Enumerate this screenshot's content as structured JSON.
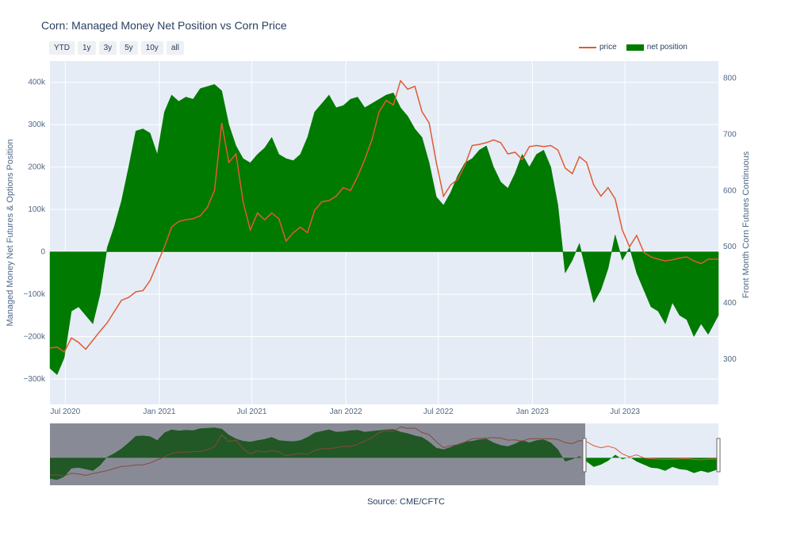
{
  "header": {
    "title": "Corn: Managed Money Net Position vs Corn Price",
    "range_buttons": [
      "YTD",
      "1y",
      "3y",
      "5y",
      "10y",
      "all"
    ]
  },
  "legend": {
    "price": "price",
    "net_position": "net position"
  },
  "source": "Source: CME/CFTC",
  "colors": {
    "price": "#e05a33",
    "net_position": "#007a00",
    "plot_bg": "#e5ecf6",
    "grid": "#ffffff"
  },
  "chart_data": {
    "type": "area",
    "title": "Corn: Managed Money Net Position vs Corn Price",
    "x_ticks": [
      "Jul 2020",
      "Jan 2021",
      "Jul 2021",
      "Jan 2022",
      "Jul 2022",
      "Jan 2023",
      "Jul 2023"
    ],
    "y_left": {
      "label": "Managed Money Net Futures & Options Position",
      "ticks": [
        "400k",
        "300k",
        "200k",
        "100k",
        "0",
        "−100k",
        "−200k",
        "−300k"
      ],
      "range": [
        -360000,
        450000
      ]
    },
    "y_right": {
      "label": "Front Month Corn Futures Continuous",
      "ticks": [
        "800",
        "700",
        "600",
        "500",
        "400",
        "300"
      ],
      "range": [
        220,
        830
      ]
    },
    "x_range": [
      "2020-06-01",
      "2023-12-31"
    ],
    "series": [
      {
        "name": "net position",
        "axis": "left",
        "points": [
          [
            "2020-06-01",
            -275000
          ],
          [
            "2020-06-15",
            -290000
          ],
          [
            "2020-06-29",
            -250000
          ],
          [
            "2020-07-13",
            -140000
          ],
          [
            "2020-07-27",
            -130000
          ],
          [
            "2020-08-10",
            -150000
          ],
          [
            "2020-08-24",
            -170000
          ],
          [
            "2020-09-07",
            -100000
          ],
          [
            "2020-09-21",
            10000
          ],
          [
            "2020-10-05",
            60000
          ],
          [
            "2020-10-19",
            120000
          ],
          [
            "2020-11-02",
            200000
          ],
          [
            "2020-11-16",
            285000
          ],
          [
            "2020-11-30",
            290000
          ],
          [
            "2020-12-14",
            280000
          ],
          [
            "2020-12-28",
            230000
          ],
          [
            "2021-01-11",
            330000
          ],
          [
            "2021-01-25",
            370000
          ],
          [
            "2021-02-08",
            355000
          ],
          [
            "2021-02-22",
            365000
          ],
          [
            "2021-03-08",
            360000
          ],
          [
            "2021-03-22",
            385000
          ],
          [
            "2021-04-05",
            390000
          ],
          [
            "2021-04-19",
            395000
          ],
          [
            "2021-05-03",
            380000
          ],
          [
            "2021-05-17",
            300000
          ],
          [
            "2021-05-31",
            250000
          ],
          [
            "2021-06-14",
            220000
          ],
          [
            "2021-06-28",
            210000
          ],
          [
            "2021-07-12",
            230000
          ],
          [
            "2021-07-26",
            245000
          ],
          [
            "2021-08-09",
            270000
          ],
          [
            "2021-08-23",
            230000
          ],
          [
            "2021-09-06",
            220000
          ],
          [
            "2021-09-20",
            215000
          ],
          [
            "2021-10-04",
            230000
          ],
          [
            "2021-10-18",
            270000
          ],
          [
            "2021-11-01",
            330000
          ],
          [
            "2021-11-15",
            350000
          ],
          [
            "2021-11-29",
            370000
          ],
          [
            "2021-12-13",
            340000
          ],
          [
            "2021-12-27",
            345000
          ],
          [
            "2022-01-10",
            360000
          ],
          [
            "2022-01-24",
            365000
          ],
          [
            "2022-02-07",
            340000
          ],
          [
            "2022-02-21",
            350000
          ],
          [
            "2022-03-07",
            360000
          ],
          [
            "2022-03-21",
            370000
          ],
          [
            "2022-04-04",
            375000
          ],
          [
            "2022-04-18",
            340000
          ],
          [
            "2022-05-02",
            320000
          ],
          [
            "2022-05-16",
            290000
          ],
          [
            "2022-05-30",
            270000
          ],
          [
            "2022-06-13",
            210000
          ],
          [
            "2022-06-27",
            130000
          ],
          [
            "2022-07-11",
            110000
          ],
          [
            "2022-07-25",
            140000
          ],
          [
            "2022-08-08",
            180000
          ],
          [
            "2022-08-22",
            210000
          ],
          [
            "2022-09-05",
            220000
          ],
          [
            "2022-09-19",
            240000
          ],
          [
            "2022-10-03",
            250000
          ],
          [
            "2022-10-17",
            200000
          ],
          [
            "2022-10-31",
            165000
          ],
          [
            "2022-11-14",
            150000
          ],
          [
            "2022-11-28",
            185000
          ],
          [
            "2022-12-12",
            230000
          ],
          [
            "2022-12-26",
            200000
          ],
          [
            "2023-01-09",
            230000
          ],
          [
            "2023-01-23",
            240000
          ],
          [
            "2023-02-06",
            200000
          ],
          [
            "2023-02-20",
            110000
          ],
          [
            "2023-03-06",
            -50000
          ],
          [
            "2023-03-20",
            -20000
          ],
          [
            "2023-04-03",
            20000
          ],
          [
            "2023-04-17",
            -50000
          ],
          [
            "2023-05-01",
            -120000
          ],
          [
            "2023-05-15",
            -90000
          ],
          [
            "2023-05-29",
            -40000
          ],
          [
            "2023-06-12",
            40000
          ],
          [
            "2023-06-26",
            -20000
          ],
          [
            "2023-07-10",
            10000
          ],
          [
            "2023-07-24",
            -50000
          ],
          [
            "2023-08-07",
            -90000
          ],
          [
            "2023-08-21",
            -130000
          ],
          [
            "2023-09-04",
            -140000
          ],
          [
            "2023-09-18",
            -170000
          ],
          [
            "2023-10-02",
            -120000
          ],
          [
            "2023-10-16",
            -150000
          ],
          [
            "2023-10-30",
            -160000
          ],
          [
            "2023-11-13",
            -200000
          ],
          [
            "2023-11-27",
            -170000
          ],
          [
            "2023-12-11",
            -195000
          ],
          [
            "2023-12-31",
            -150000
          ]
        ]
      },
      {
        "name": "price",
        "axis": "right",
        "points": [
          [
            "2020-06-01",
            320
          ],
          [
            "2020-06-15",
            322
          ],
          [
            "2020-06-29",
            313
          ],
          [
            "2020-07-13",
            338
          ],
          [
            "2020-07-27",
            330
          ],
          [
            "2020-08-10",
            318
          ],
          [
            "2020-08-24",
            334
          ],
          [
            "2020-09-07",
            350
          ],
          [
            "2020-09-21",
            365
          ],
          [
            "2020-10-05",
            385
          ],
          [
            "2020-10-19",
            405
          ],
          [
            "2020-11-02",
            410
          ],
          [
            "2020-11-16",
            420
          ],
          [
            "2020-11-30",
            422
          ],
          [
            "2020-12-14",
            440
          ],
          [
            "2020-12-28",
            470
          ],
          [
            "2021-01-11",
            500
          ],
          [
            "2021-01-25",
            535
          ],
          [
            "2021-02-08",
            545
          ],
          [
            "2021-02-22",
            548
          ],
          [
            "2021-03-08",
            550
          ],
          [
            "2021-03-22",
            555
          ],
          [
            "2021-04-05",
            570
          ],
          [
            "2021-04-19",
            600
          ],
          [
            "2021-05-03",
            720
          ],
          [
            "2021-05-17",
            650
          ],
          [
            "2021-05-31",
            665
          ],
          [
            "2021-06-14",
            580
          ],
          [
            "2021-06-28",
            530
          ],
          [
            "2021-07-12",
            560
          ],
          [
            "2021-07-26",
            548
          ],
          [
            "2021-08-09",
            560
          ],
          [
            "2021-08-23",
            550
          ],
          [
            "2021-09-06",
            510
          ],
          [
            "2021-09-20",
            525
          ],
          [
            "2021-10-04",
            535
          ],
          [
            "2021-10-18",
            525
          ],
          [
            "2021-11-01",
            565
          ],
          [
            "2021-11-15",
            580
          ],
          [
            "2021-11-29",
            582
          ],
          [
            "2021-12-13",
            590
          ],
          [
            "2021-12-27",
            605
          ],
          [
            "2022-01-10",
            600
          ],
          [
            "2022-01-24",
            625
          ],
          [
            "2022-02-07",
            655
          ],
          [
            "2022-02-21",
            690
          ],
          [
            "2022-03-07",
            740
          ],
          [
            "2022-03-21",
            760
          ],
          [
            "2022-04-04",
            752
          ],
          [
            "2022-04-18",
            795
          ],
          [
            "2022-05-02",
            780
          ],
          [
            "2022-05-16",
            785
          ],
          [
            "2022-05-30",
            740
          ],
          [
            "2022-06-13",
            720
          ],
          [
            "2022-06-27",
            650
          ],
          [
            "2022-07-11",
            590
          ],
          [
            "2022-07-25",
            610
          ],
          [
            "2022-08-08",
            620
          ],
          [
            "2022-08-22",
            645
          ],
          [
            "2022-09-05",
            680
          ],
          [
            "2022-09-19",
            682
          ],
          [
            "2022-10-03",
            685
          ],
          [
            "2022-10-17",
            690
          ],
          [
            "2022-10-31",
            685
          ],
          [
            "2022-11-14",
            665
          ],
          [
            "2022-11-28",
            668
          ],
          [
            "2022-12-12",
            655
          ],
          [
            "2022-12-26",
            678
          ],
          [
            "2023-01-09",
            680
          ],
          [
            "2023-01-23",
            678
          ],
          [
            "2023-02-06",
            680
          ],
          [
            "2023-02-20",
            672
          ],
          [
            "2023-03-06",
            640
          ],
          [
            "2023-03-20",
            630
          ],
          [
            "2023-04-03",
            660
          ],
          [
            "2023-04-17",
            650
          ],
          [
            "2023-05-01",
            610
          ],
          [
            "2023-05-15",
            590
          ],
          [
            "2023-05-29",
            605
          ],
          [
            "2023-06-12",
            585
          ],
          [
            "2023-06-26",
            530
          ],
          [
            "2023-07-10",
            500
          ],
          [
            "2023-07-24",
            520
          ],
          [
            "2023-08-07",
            490
          ],
          [
            "2023-08-21",
            482
          ],
          [
            "2023-09-04",
            478
          ],
          [
            "2023-09-18",
            475
          ],
          [
            "2023-10-02",
            477
          ],
          [
            "2023-10-16",
            480
          ],
          [
            "2023-10-30",
            482
          ],
          [
            "2023-11-13",
            475
          ],
          [
            "2023-11-27",
            470
          ],
          [
            "2023-12-11",
            478
          ],
          [
            "2023-12-31",
            478
          ]
        ]
      }
    ],
    "grid": true,
    "legend_position": "top-right",
    "range_slider": true
  }
}
